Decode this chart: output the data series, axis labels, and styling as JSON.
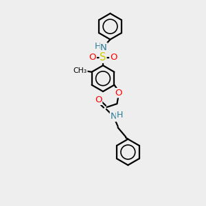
{
  "background_color": "#eeeeee",
  "bond_color": "#000000",
  "atom_colors": {
    "N": "#2a7a9a",
    "O": "#ff0000",
    "S": "#cccc00",
    "C": "#000000",
    "H": "#2a7a9a"
  },
  "figsize": [
    3.0,
    3.0
  ],
  "dpi": 100,
  "xlim": [
    0,
    10
  ],
  "ylim": [
    0,
    14
  ]
}
